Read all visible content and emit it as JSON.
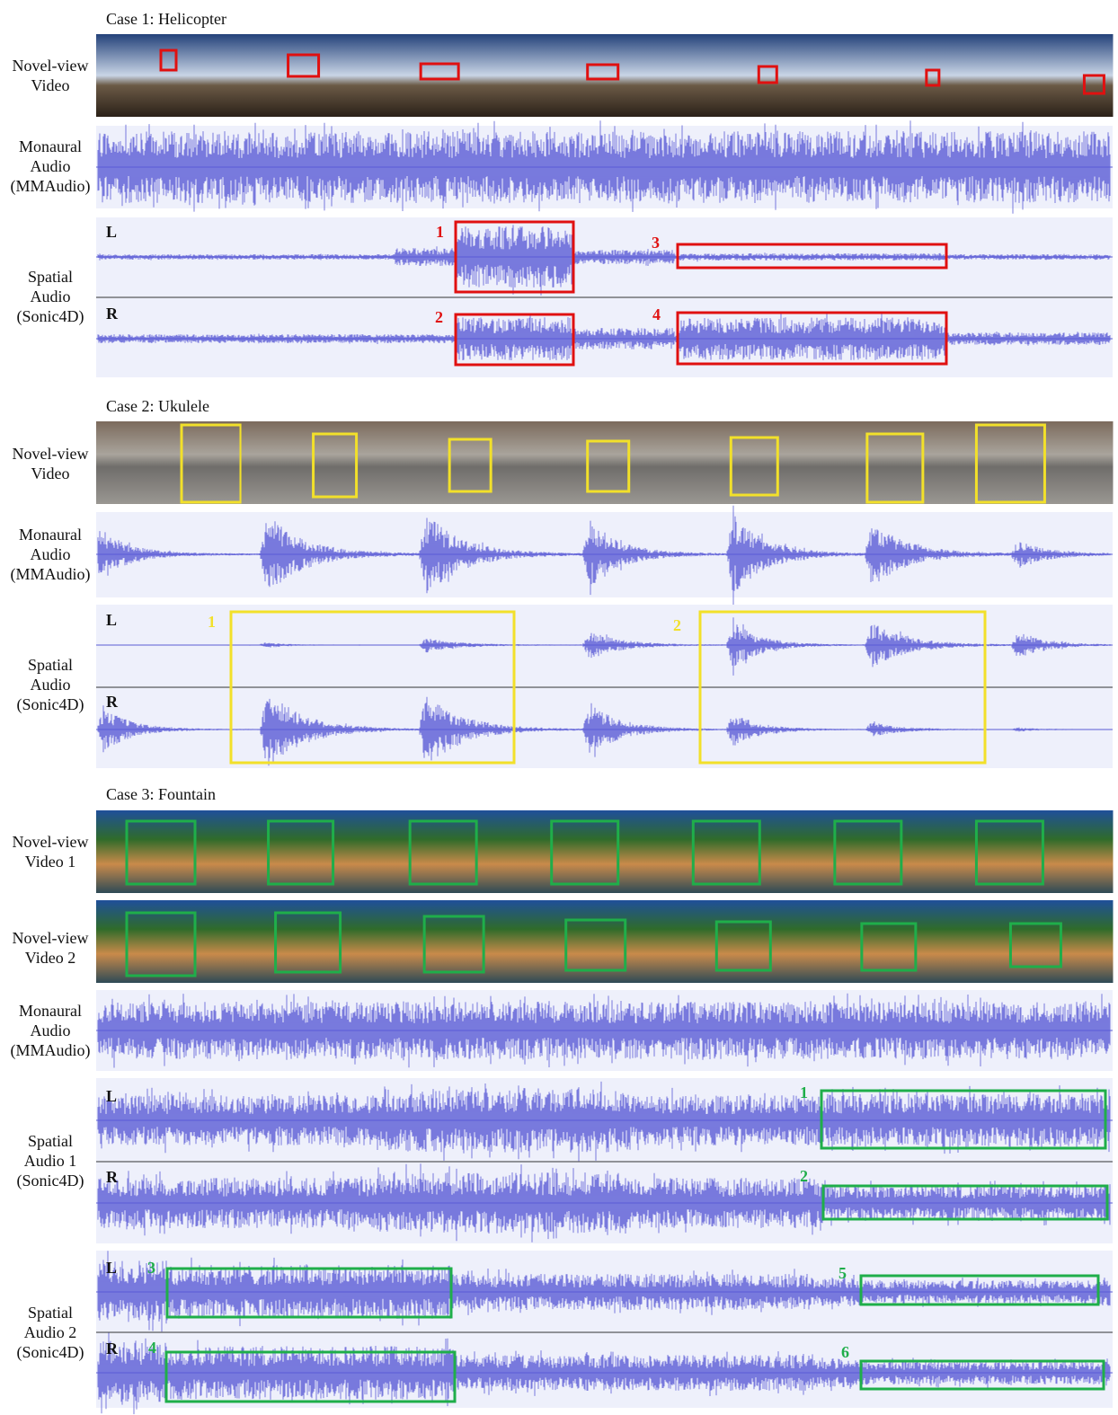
{
  "cases": [
    {
      "title": "Case 1: Helicopter",
      "rows": [
        {
          "label": [
            "Novel-view",
            "Video"
          ]
        },
        {
          "label": [
            "Monaural",
            "Audio",
            "(MMAudio)"
          ]
        },
        {
          "label": [
            "Spatial",
            "Audio",
            "(Sonic4D)"
          ],
          "channels": [
            "L",
            "R"
          ],
          "boxes": [
            "1",
            "3",
            "2",
            "4"
          ]
        }
      ]
    },
    {
      "title": "Case 2: Ukulele",
      "rows": [
        {
          "label": [
            "Novel-view",
            "Video"
          ]
        },
        {
          "label": [
            "Monaural",
            "Audio",
            "(MMAudio)"
          ]
        },
        {
          "label": [
            "Spatial",
            "Audio",
            "(Sonic4D)"
          ],
          "channels": [
            "L",
            "R"
          ],
          "boxes": [
            "1",
            "2"
          ]
        }
      ]
    },
    {
      "title": "Case 3: Fountain",
      "rows": [
        {
          "label": [
            "Novel-view",
            "Video 1"
          ]
        },
        {
          "label": [
            "Novel-view",
            "Video 2"
          ]
        },
        {
          "label": [
            "Monaural",
            "Audio",
            "(MMAudio)"
          ]
        },
        {
          "label": [
            "Spatial",
            "Audio 1",
            "(Sonic4D)"
          ],
          "channels": [
            "L",
            "R"
          ],
          "boxes": [
            "1",
            "2"
          ]
        },
        {
          "label": [
            "Spatial",
            "Audio 2",
            "(Sonic4D)"
          ],
          "channels": [
            "L",
            "R"
          ],
          "boxes": [
            "3",
            "5",
            "4",
            "6"
          ]
        }
      ]
    }
  ]
}
